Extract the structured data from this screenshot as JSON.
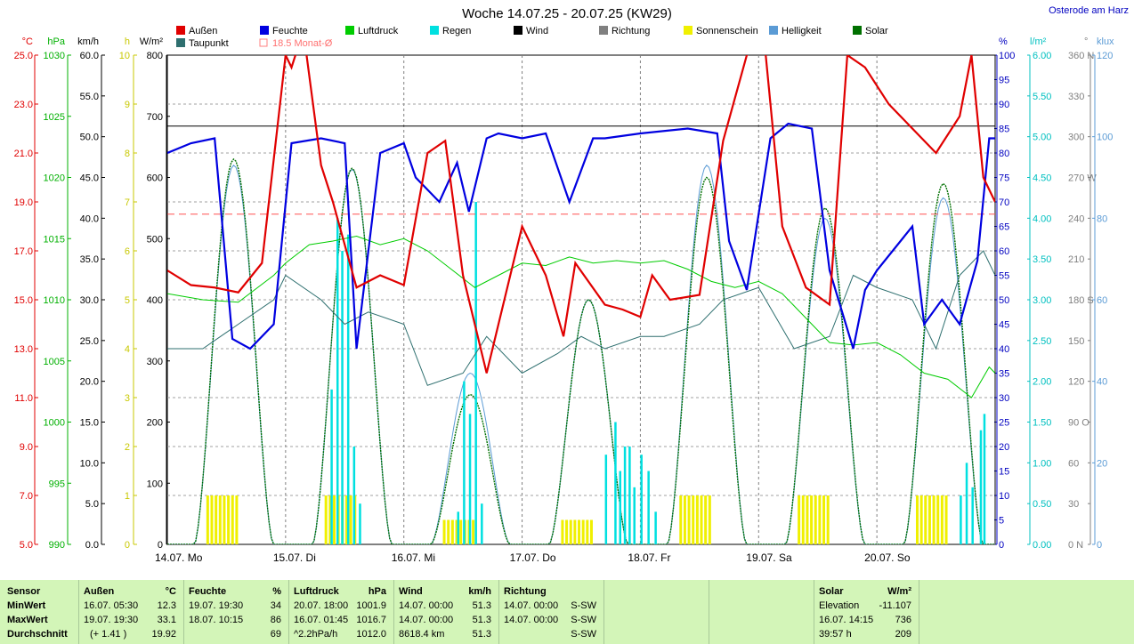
{
  "header": {
    "title": "Woche 14.07.25 - 20.07.25 (KW29)",
    "location": "Osterode am Harz"
  },
  "legend": [
    {
      "label": "Außen",
      "color": "#e00000"
    },
    {
      "label": "Feuchte",
      "color": "#0000e0"
    },
    {
      "label": "Luftdruck",
      "color": "#00cc00"
    },
    {
      "label": "Regen",
      "color": "#00e0e0"
    },
    {
      "label": "Wind",
      "color": "#000000"
    },
    {
      "label": "Richtung",
      "color": "#808080"
    },
    {
      "label": "Sonnenschein",
      "color": "#f0f000"
    },
    {
      "label": "Helligkeit",
      "color": "#5b9bd5"
    },
    {
      "label": "Solar",
      "color": "#007000"
    },
    {
      "label": "Taupunkt",
      "color": "#2e6f6f"
    },
    {
      "label": "18.5 Monat-Ø",
      "color": "#ff8080"
    }
  ],
  "chart_data": {
    "type": "line",
    "x_ticks": [
      "14.07. Mo",
      "15.07. Di",
      "16.07. Mi",
      "17.07. Do",
      "18.07. Fr",
      "19.07. Sa",
      "20.07. So"
    ],
    "axes": {
      "temp": {
        "unit": "°C",
        "ticks": [
          "25.0",
          "23.0",
          "21.0",
          "19.0",
          "17.0",
          "15.0",
          "13.0",
          "11.0",
          "9.0",
          "7.0",
          "5.0"
        ],
        "range": [
          5,
          25
        ],
        "color": "#e00000"
      },
      "pressure": {
        "unit": "hPa",
        "ticks": [
          "1030",
          "1025",
          "1020",
          "1015",
          "1010",
          "1005",
          "1000",
          "995",
          "990"
        ],
        "range": [
          990,
          1030
        ],
        "color": "#00b000"
      },
      "wind": {
        "unit": "km/h",
        "ticks": [
          "60.0",
          "55.0",
          "50.0",
          "45.0",
          "40.0",
          "35.0",
          "30.0",
          "25.0",
          "20.0",
          "15.0",
          "10.0",
          "5.0",
          "0.0"
        ],
        "range": [
          0,
          60
        ],
        "color": "#000000"
      },
      "sun": {
        "unit": "h",
        "ticks": [
          "10",
          "9",
          "8",
          "7",
          "6",
          "5",
          "4",
          "3",
          "2",
          "1",
          "0"
        ],
        "range": [
          0,
          10
        ],
        "color": "#c8c800"
      },
      "solar": {
        "unit": "W/m²",
        "ticks": [
          "800",
          "700",
          "600",
          "500",
          "400",
          "300",
          "200",
          "100",
          "0"
        ],
        "range": [
          0,
          800
        ],
        "color": "#000000"
      },
      "humidity": {
        "unit": "%",
        "ticks": [
          "100",
          "95",
          "90",
          "85",
          "80",
          "75",
          "70",
          "65",
          "60",
          "55",
          "50",
          "45",
          "40",
          "35",
          "30",
          "25",
          "20",
          "15",
          "10",
          "5",
          "0"
        ],
        "range": [
          0,
          100
        ],
        "color": "#0000c0"
      },
      "rain": {
        "unit": "l/m²",
        "ticks": [
          "6.00",
          "5.50",
          "5.00",
          "4.50",
          "4.00",
          "3.50",
          "3.00",
          "2.50",
          "2.00",
          "1.50",
          "1.00",
          "0.50",
          "0.00"
        ],
        "range": [
          0,
          6
        ],
        "color": "#00c0c0"
      },
      "direction": {
        "unit": "°",
        "ticks": [
          "360 N",
          "330",
          "300",
          "270 W",
          "240",
          "210",
          "180 S",
          "150",
          "120",
          "90 O",
          "60",
          "30",
          "0 N"
        ],
        "range": [
          0,
          360
        ],
        "color": "#808080"
      },
      "lux": {
        "unit": "klux",
        "ticks": [
          "120",
          "100",
          "80",
          "60",
          "40",
          "20",
          "0"
        ],
        "range": [
          0,
          120
        ],
        "color": "#5b9bd5"
      }
    },
    "monthly_avg_temp": 18.5,
    "wind_constant_kmh": 51.3,
    "series": [
      {
        "name": "Außen",
        "unit": "°C",
        "x": [
          0,
          0.2,
          0.4,
          0.6,
          0.8,
          1.0,
          1.05,
          1.15,
          1.3,
          1.4,
          1.6,
          1.8,
          2.0,
          2.2,
          2.35,
          2.5,
          2.7,
          2.8,
          3.0,
          3.2,
          3.35,
          3.45,
          3.7,
          3.85,
          4.0,
          4.1,
          4.25,
          4.5,
          4.7,
          4.9,
          5.05,
          5.2,
          5.4,
          5.6,
          5.75,
          5.9,
          6.1,
          6.3,
          6.5,
          6.7,
          6.8,
          6.9,
          7.0
        ],
        "y": [
          16.2,
          15.6,
          15.5,
          15.3,
          16.5,
          25,
          24.5,
          26,
          20.5,
          19,
          15.5,
          16,
          15.6,
          21,
          21.5,
          16,
          12,
          14,
          18,
          16,
          13.5,
          16.5,
          14.8,
          14.6,
          14.3,
          16,
          15,
          15.2,
          21.5,
          25,
          25.5,
          18,
          15.5,
          14.8,
          25,
          24.5,
          23,
          22,
          21,
          22.5,
          25,
          20,
          19
        ],
        "values_note": "approximate readings from plot"
      },
      {
        "name": "Feuchte",
        "unit": "%",
        "x": [
          0,
          0.2,
          0.4,
          0.55,
          0.7,
          0.9,
          1.05,
          1.3,
          1.5,
          1.6,
          1.8,
          2.0,
          2.1,
          2.3,
          2.45,
          2.55,
          2.7,
          2.8,
          3.0,
          3.2,
          3.4,
          3.6,
          3.7,
          4.0,
          4.4,
          4.65,
          4.75,
          4.9,
          5.1,
          5.25,
          5.45,
          5.6,
          5.8,
          5.9,
          6.0,
          6.3,
          6.4,
          6.55,
          6.7,
          6.85,
          6.95,
          7.0
        ],
        "y": [
          80,
          82,
          83,
          42,
          40,
          45,
          82,
          83,
          82,
          40,
          80,
          82,
          75,
          70,
          78,
          68,
          83,
          84,
          83,
          84,
          70,
          83,
          83,
          84,
          85,
          84,
          62,
          52,
          83,
          86,
          85,
          56,
          40,
          52,
          56,
          65,
          45,
          50,
          45,
          58,
          83,
          83
        ]
      },
      {
        "name": "Luftdruck",
        "unit": "hPa",
        "x": [
          0,
          0.3,
          0.6,
          0.9,
          1.0,
          1.2,
          1.4,
          1.6,
          1.8,
          2.0,
          2.2,
          2.4,
          2.6,
          2.8,
          3.0,
          3.2,
          3.4,
          3.6,
          3.8,
          4.0,
          4.2,
          4.4,
          4.6,
          4.8,
          5.0,
          5.2,
          5.4,
          5.6,
          5.8,
          6.0,
          6.2,
          6.4,
          6.6,
          6.8,
          6.95,
          7.0
        ],
        "y": [
          1010.5,
          1010.0,
          1009.8,
          1012.0,
          1013.0,
          1014.5,
          1014.8,
          1015.2,
          1014.5,
          1015.0,
          1014.0,
          1012.5,
          1011.0,
          1012.0,
          1013.0,
          1012.8,
          1013.5,
          1013.0,
          1013.2,
          1013.0,
          1013.2,
          1012.5,
          1011.5,
          1011.0,
          1011.5,
          1010.5,
          1008.5,
          1006.5,
          1006.3,
          1006.5,
          1005.5,
          1004.0,
          1003.5,
          1002.0,
          1004.5,
          1004.0
        ]
      },
      {
        "name": "Wind",
        "unit": "km/h",
        "x": [
          0,
          7
        ],
        "y": [
          51.3,
          51.3
        ]
      },
      {
        "name": "Taupunkt",
        "unit": "°C",
        "x": [
          0,
          0.3,
          0.6,
          0.9,
          1.0,
          1.3,
          1.5,
          1.7,
          2.0,
          2.2,
          2.5,
          2.7,
          3.0,
          3.3,
          3.5,
          3.7,
          4.0,
          4.2,
          4.5,
          4.7,
          5.0,
          5.3,
          5.6,
          5.8,
          6.0,
          6.3,
          6.5,
          6.7,
          6.9,
          7.0
        ],
        "y": [
          13,
          13,
          14,
          15,
          16,
          15,
          14,
          14.5,
          14,
          11.5,
          12,
          13.5,
          12,
          12.8,
          13.5,
          13,
          13.5,
          13.5,
          14,
          15,
          15.5,
          13,
          13.5,
          16,
          15.5,
          15,
          13,
          16,
          17,
          16
        ]
      },
      {
        "name": "Regen",
        "unit": "l/m²",
        "x": [
          1.38,
          1.43,
          1.47,
          1.52,
          1.57,
          1.62,
          2.45,
          2.5,
          2.55,
          2.6,
          2.65,
          3.7,
          3.78,
          3.82,
          3.86,
          3.9,
          3.94,
          4.0,
          4.06,
          4.12,
          6.7,
          6.75,
          6.8,
          6.87,
          6.9
        ],
        "y": [
          1.9,
          4.0,
          3.6,
          3.8,
          1.2,
          0.5,
          0.4,
          2.0,
          1.6,
          4.2,
          0.5,
          1.1,
          1.5,
          0.9,
          1.2,
          1.2,
          0.7,
          1.1,
          0.9,
          0.4,
          0.6,
          1.0,
          0.7,
          1.4,
          1.6
        ]
      },
      {
        "name": "Sonnenschein",
        "unit": "h",
        "days": [
          "14.07.",
          "15.07.",
          "16.07.",
          "17.07.",
          "18.07.",
          "19.07.",
          "20.07."
        ],
        "values": [
          1,
          1,
          0.5,
          0.5,
          1,
          1,
          1
        ]
      },
      {
        "name": "Helligkeit",
        "unit": "klux",
        "peaks": [
          93,
          92,
          42,
          60,
          93,
          80,
          85
        ]
      },
      {
        "name": "Solar",
        "unit": "W/m²",
        "peaks": [
          630,
          615,
          245,
          400,
          600,
          550,
          590
        ]
      }
    ]
  },
  "stats": {
    "rows": [
      "Sensor",
      "MinWert",
      "MaxWert",
      "Durchschnitt"
    ],
    "aussen": {
      "title": "Außen",
      "unit": "°C",
      "min_t": "16.07.  05:30",
      "min_v": "12.3",
      "max_t": "19.07.  19:30",
      "max_v": "33.1",
      "avg_t": "(+ 1.41 )",
      "avg_v": "19.92"
    },
    "feuchte": {
      "title": "Feuchte",
      "unit": "%",
      "min_t": "19.07.  19:30",
      "min_v": "34",
      "max_t": "18.07.  10:15",
      "max_v": "86",
      "avg_v": "69"
    },
    "luftdruck": {
      "title": "Luftdruck",
      "unit": "hPa",
      "min_t": "20.07.  18:00",
      "min_v": "1001.9",
      "max_t": "16.07.  01:45",
      "max_v": "1016.7",
      "avg_t": "^2.2hPa/h",
      "avg_v": "1012.0"
    },
    "wind": {
      "title": "Wind",
      "unit": "km/h",
      "min_t": "14.07.  00:00",
      "min_v": "51.3",
      "max_t": "14.07.  00:00",
      "max_v": "51.3",
      "avg_t": "8618.4 km",
      "avg_v": "51.3"
    },
    "richtung": {
      "title": "Richtung",
      "min_t": "14.07.  00:00",
      "min_v": "S-SW",
      "max_t": "14.07.  00:00",
      "max_v": "S-SW",
      "avg_v": "S-SW"
    },
    "solar": {
      "title": "Solar",
      "unit": "W/m²",
      "min_t": "Elevation",
      "min_v": "-11.107",
      "max_t": "16.07.  14:15",
      "max_v": "736",
      "avg_t": "39:57 h",
      "avg_v": "209"
    }
  }
}
